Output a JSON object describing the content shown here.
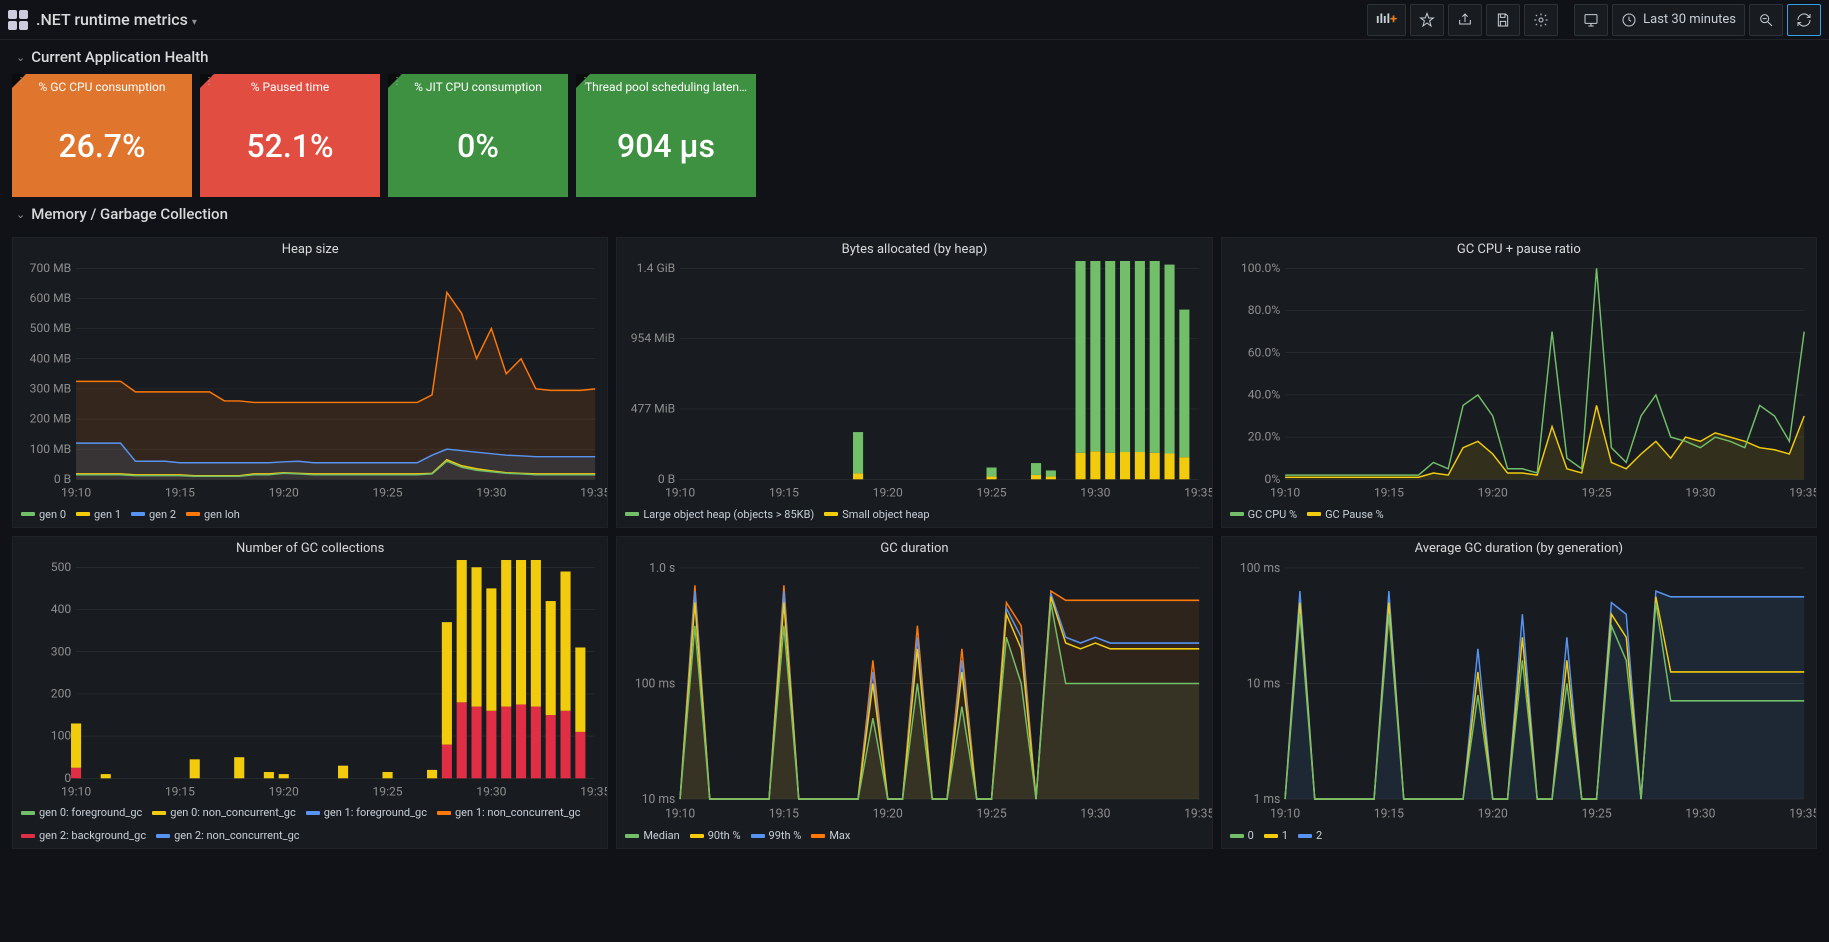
{
  "header": {
    "title": ".NET runtime metrics",
    "timerange_label": "Last 30 minutes"
  },
  "sections": {
    "health": "Current Application Health",
    "memory": "Memory / Garbage Collection"
  },
  "stats": [
    {
      "title": "% GC CPU consumption",
      "value": "26.7%",
      "bg": "#e0752d"
    },
    {
      "title": "% Paused time",
      "value": "52.1%",
      "bg": "#e24d42"
    },
    {
      "title": "% JIT CPU consumption",
      "value": "0%",
      "bg": "#3f9142"
    },
    {
      "title": "Thread pool scheduling laten…",
      "value": "904 µs",
      "bg": "#3f9142"
    }
  ],
  "time_axis": [
    "19:10",
    "19:15",
    "19:20",
    "19:25",
    "19:30",
    "19:35"
  ],
  "colors": {
    "green": "#73bf69",
    "yellow": "#f2cc0c",
    "cyan": "#5794f2",
    "orange": "#ff780a",
    "red": "#e02f44",
    "brown": "#a6683c",
    "teal": "#37b6bd"
  },
  "charts": {
    "heap": {
      "title": "Heap size",
      "ylabels": [
        "0 B",
        "100 MB",
        "200 MB",
        "300 MB",
        "400 MB",
        "500 MB",
        "600 MB",
        "700 MB"
      ],
      "legend": [
        {
          "label": "gen 0",
          "color": "#73bf69"
        },
        {
          "label": "gen 1",
          "color": "#f2cc0c"
        },
        {
          "label": "gen 2",
          "color": "#5794f2"
        },
        {
          "label": "gen loh",
          "color": "#ff780a"
        }
      ],
      "series": {
        "gen0": [
          15,
          15,
          15,
          15,
          12,
          12,
          12,
          12,
          10,
          10,
          10,
          10,
          15,
          15,
          20,
          18,
          15,
          15,
          15,
          15,
          15,
          15,
          15,
          15,
          18,
          60,
          40,
          30,
          25,
          20,
          18,
          15,
          15,
          15,
          15,
          15
        ],
        "gen1": [
          18,
          18,
          18,
          18,
          15,
          15,
          15,
          15,
          12,
          12,
          12,
          12,
          18,
          18,
          22,
          20,
          18,
          18,
          18,
          18,
          18,
          18,
          18,
          18,
          20,
          65,
          45,
          35,
          28,
          22,
          20,
          18,
          18,
          18,
          18,
          18
        ],
        "gen2": [
          120,
          120,
          120,
          120,
          60,
          60,
          60,
          55,
          55,
          55,
          55,
          55,
          55,
          55,
          58,
          60,
          55,
          55,
          55,
          55,
          55,
          55,
          55,
          55,
          80,
          100,
          95,
          90,
          85,
          80,
          78,
          75,
          75,
          75,
          75,
          75
        ],
        "genloh": [
          325,
          325,
          325,
          325,
          290,
          290,
          290,
          290,
          290,
          290,
          260,
          260,
          255,
          255,
          255,
          255,
          255,
          255,
          255,
          255,
          255,
          255,
          255,
          255,
          280,
          620,
          550,
          400,
          500,
          350,
          400,
          300,
          295,
          295,
          295,
          300
        ]
      },
      "ymax": 700
    },
    "bytes": {
      "title": "Bytes allocated (by heap)",
      "ylabels": [
        "0 B",
        "477 MiB",
        "954 MiB",
        "1.4 GiB"
      ],
      "legend": [
        {
          "label": "Large object heap (objects > 85KB)",
          "color": "#73bf69"
        },
        {
          "label": "Small object heap",
          "color": "#f2cc0c"
        }
      ],
      "bars": {
        "large": [
          0,
          0,
          0,
          0,
          0,
          0,
          0,
          0,
          0,
          0,
          0,
          0,
          280,
          0,
          0,
          0,
          0,
          0,
          0,
          0,
          0,
          60,
          0,
          0,
          80,
          40,
          0,
          1350,
          1380,
          1300,
          1350,
          1350,
          1300,
          1280,
          1000,
          0
        ],
        "small": [
          0,
          0,
          0,
          0,
          0,
          0,
          0,
          0,
          0,
          0,
          0,
          0,
          40,
          0,
          0,
          0,
          0,
          0,
          0,
          0,
          0,
          20,
          0,
          0,
          30,
          20,
          0,
          180,
          190,
          180,
          185,
          185,
          180,
          175,
          150,
          0
        ]
      },
      "ymax": 1430
    },
    "gccpu": {
      "title": "GC CPU + pause ratio",
      "ylabels": [
        "0%",
        "20.0%",
        "40.0%",
        "60.0%",
        "80.0%",
        "100.0%"
      ],
      "legend": [
        {
          "label": "GC CPU %",
          "color": "#73bf69"
        },
        {
          "label": "GC Pause %",
          "color": "#f2cc0c"
        }
      ],
      "series": {
        "cpu": [
          2,
          2,
          2,
          2,
          2,
          2,
          2,
          2,
          2,
          2,
          8,
          5,
          35,
          40,
          30,
          5,
          5,
          3,
          70,
          10,
          5,
          100,
          15,
          8,
          30,
          40,
          20,
          18,
          15,
          20,
          18,
          15,
          35,
          30,
          18,
          70
        ],
        "pause": [
          1,
          1,
          1,
          1,
          1,
          1,
          1,
          1,
          1,
          1,
          3,
          2,
          15,
          18,
          12,
          3,
          3,
          2,
          25,
          5,
          3,
          35,
          8,
          5,
          12,
          18,
          10,
          20,
          18,
          22,
          20,
          18,
          15,
          14,
          12,
          30
        ]
      },
      "ymax": 100
    },
    "collections": {
      "title": "Number of GC collections",
      "ylabels": [
        "0",
        "100",
        "200",
        "300",
        "400",
        "500"
      ],
      "legend": [
        {
          "label": "gen 0: foreground_gc",
          "color": "#73bf69"
        },
        {
          "label": "gen 0: non_concurrent_gc",
          "color": "#f2cc0c"
        },
        {
          "label": "gen 1: foreground_gc",
          "color": "#5794f2"
        },
        {
          "label": "gen 1: non_concurrent_gc",
          "color": "#ff780a"
        },
        {
          "label": "gen 2: background_gc",
          "color": "#e02f44"
        },
        {
          "label": "gen 2: non_concurrent_gc",
          "color": "#5794f2"
        }
      ],
      "bars": {
        "yellow": [
          105,
          0,
          10,
          0,
          0,
          0,
          0,
          0,
          45,
          0,
          0,
          50,
          0,
          15,
          10,
          0,
          0,
          0,
          30,
          0,
          0,
          15,
          0,
          0,
          20,
          290,
          440,
          330,
          290,
          350,
          380,
          370,
          270,
          330,
          200,
          0
        ],
        "red": [
          25,
          0,
          0,
          0,
          0,
          0,
          0,
          0,
          0,
          0,
          0,
          0,
          0,
          0,
          0,
          0,
          0,
          0,
          0,
          0,
          0,
          0,
          0,
          0,
          0,
          80,
          180,
          170,
          160,
          170,
          175,
          170,
          150,
          160,
          110,
          0
        ]
      },
      "ymax": 500
    },
    "gcduration": {
      "title": "GC duration",
      "ylabels": [
        "10 ms",
        "100 ms",
        "1.0 s"
      ],
      "legend": [
        {
          "label": "Median",
          "color": "#73bf69"
        },
        {
          "label": "90th %",
          "color": "#f2cc0c"
        },
        {
          "label": "99th %",
          "color": "#5794f2"
        },
        {
          "label": "Max",
          "color": "#ff780a"
        }
      ],
      "logmin": 1,
      "logmax": 3,
      "series": {
        "median": [
          1.0,
          2.5,
          1.0,
          1.0,
          1.0,
          1.0,
          1.0,
          2.5,
          1.0,
          1.0,
          1.0,
          1.0,
          1.0,
          1.7,
          1.0,
          1.0,
          2.0,
          1.0,
          1.0,
          1.8,
          1.0,
          1.0,
          2.4,
          2.0,
          1.0,
          2.7,
          2.0,
          2.0,
          2.0,
          2.0,
          2.0,
          2.0,
          2.0,
          2.0,
          2.0,
          2.0
        ],
        "p90": [
          1.0,
          2.7,
          1.0,
          1.0,
          1.0,
          1.0,
          1.0,
          2.7,
          1.0,
          1.0,
          1.0,
          1.0,
          1.0,
          2.0,
          1.0,
          1.0,
          2.3,
          1.0,
          1.0,
          2.1,
          1.0,
          1.0,
          2.6,
          2.3,
          1.0,
          2.75,
          2.35,
          2.3,
          2.35,
          2.3,
          2.3,
          2.3,
          2.3,
          2.3,
          2.3,
          2.3
        ],
        "p99": [
          1.0,
          2.8,
          1.0,
          1.0,
          1.0,
          1.0,
          1.0,
          2.8,
          1.0,
          1.0,
          1.0,
          1.0,
          1.0,
          2.1,
          1.0,
          1.0,
          2.4,
          1.0,
          1.0,
          2.2,
          1.0,
          1.0,
          2.65,
          2.4,
          1.0,
          2.78,
          2.4,
          2.35,
          2.4,
          2.35,
          2.35,
          2.35,
          2.35,
          2.35,
          2.35,
          2.35
        ],
        "max": [
          1.0,
          2.85,
          1.0,
          1.0,
          1.0,
          1.0,
          1.0,
          2.85,
          1.0,
          1.0,
          1.0,
          1.0,
          1.0,
          2.2,
          1.0,
          1.0,
          2.5,
          1.0,
          1.0,
          2.3,
          1.0,
          1.0,
          2.7,
          2.5,
          1.0,
          2.8,
          2.72,
          2.72,
          2.72,
          2.72,
          2.72,
          2.72,
          2.72,
          2.72,
          2.72,
          2.72
        ]
      }
    },
    "avggc": {
      "title": "Average GC duration (by generation)",
      "ylabels": [
        "1 ms",
        "10 ms",
        "100 ms"
      ],
      "legend": [
        {
          "label": "0",
          "color": "#73bf69"
        },
        {
          "label": "1",
          "color": "#f2cc0c"
        },
        {
          "label": "2",
          "color": "#5794f2"
        }
      ],
      "logmin": 0,
      "logmax": 2,
      "series": {
        "g0": [
          0,
          1.6,
          0,
          0,
          0,
          0,
          0,
          1.6,
          0,
          0,
          0,
          0,
          0,
          0.9,
          0,
          0,
          1.2,
          0,
          0,
          1.0,
          0,
          0,
          1.5,
          1.2,
          0,
          1.7,
          0.85,
          0.85,
          0.85,
          0.85,
          0.85,
          0.85,
          0.85,
          0.85,
          0.85,
          0.85
        ],
        "g1": [
          0,
          1.7,
          0,
          0,
          0,
          0,
          0,
          1.7,
          0,
          0,
          0,
          0,
          0,
          1.1,
          0,
          0,
          1.4,
          0,
          0,
          1.2,
          0,
          0,
          1.6,
          1.4,
          0,
          1.75,
          1.1,
          1.1,
          1.1,
          1.1,
          1.1,
          1.1,
          1.1,
          1.1,
          1.1,
          1.1
        ],
        "g2": [
          0,
          1.8,
          0,
          0,
          0,
          0,
          0,
          1.8,
          0,
          0,
          0,
          0,
          0,
          1.3,
          0,
          0,
          1.6,
          0,
          0,
          1.4,
          0,
          0,
          1.7,
          1.6,
          0,
          1.8,
          1.75,
          1.75,
          1.75,
          1.75,
          1.75,
          1.75,
          1.75,
          1.75,
          1.75,
          1.75
        ]
      }
    }
  }
}
